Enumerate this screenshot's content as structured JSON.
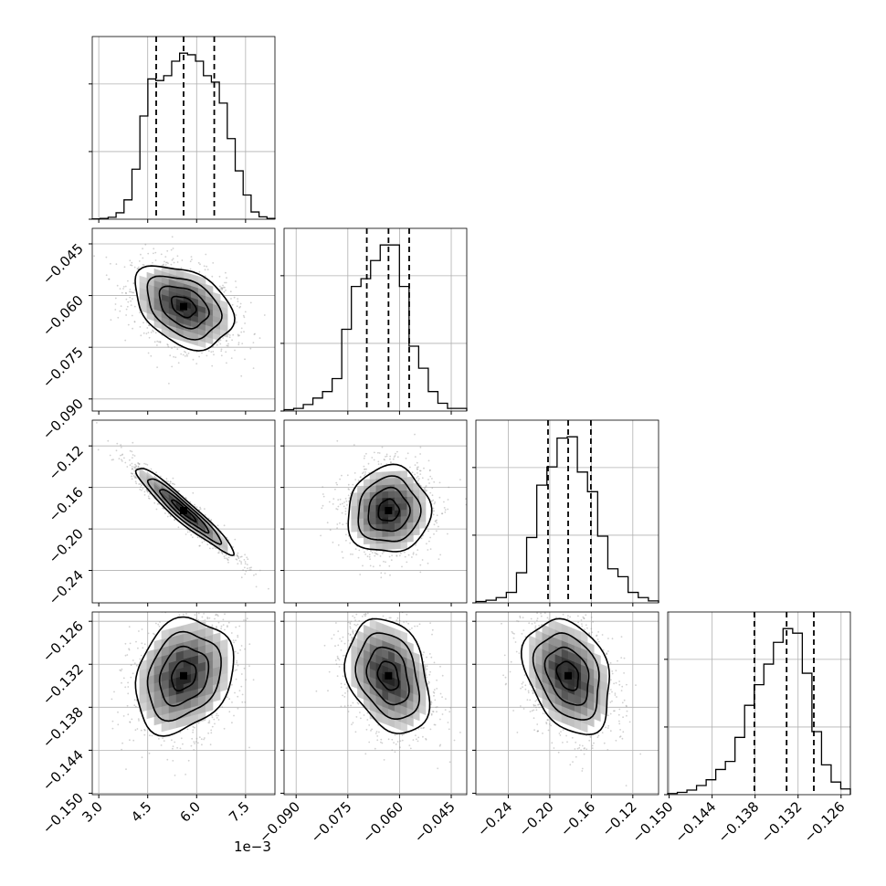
{
  "chart_data": {
    "type": "corner",
    "variables": 4,
    "grid": true,
    "colors": {
      "line": "#000000",
      "grid": "#b0b0b0",
      "scatter": "#9a9a9a"
    },
    "x_offset_label": "1e−3",
    "axes": [
      {
        "range": [
          2.8,
          8.4
        ],
        "ticks": [
          3.0,
          4.5,
          6.0,
          7.5
        ],
        "tick_labels": [
          "3.0",
          "4.5",
          "6.0",
          "7.5"
        ]
      },
      {
        "range": [
          -0.0935,
          -0.0405
        ],
        "ticks": [
          -0.09,
          -0.075,
          -0.06,
          -0.045
        ],
        "tick_labels": [
          "−0.090",
          "−0.075",
          "−0.060",
          "−0.045"
        ]
      },
      {
        "range": [
          -0.2712,
          -0.0952
        ],
        "ticks": [
          -0.24,
          -0.2,
          -0.16,
          -0.12
        ],
        "tick_labels": [
          "−0.24",
          "−0.20",
          "−0.16",
          "−0.12"
        ]
      },
      {
        "range": [
          -0.1502,
          -0.1247
        ],
        "ticks": [
          -0.15,
          -0.144,
          -0.138,
          -0.132,
          -0.126
        ],
        "tick_labels": [
          "−0.150",
          "−0.144",
          "−0.138",
          "−0.132",
          "−0.126"
        ]
      }
    ],
    "quantiles": [
      [
        4.76,
        5.6,
        6.54
      ],
      [
        -0.0695,
        -0.0632,
        -0.0572
      ],
      [
        -0.2017,
        -0.1823,
        -0.1604
      ],
      [
        -0.1381,
        -0.1336,
        -0.1298
      ]
    ],
    "histograms": [
      {
        "counts": [
          2,
          5,
          12,
          40,
          120,
          310,
          640,
          870,
          860,
          890,
          980,
          1030,
          1020,
          980,
          890,
          850,
          720,
          500,
          300,
          150,
          45,
          15,
          5
        ]
      },
      {
        "counts": [
          10,
          20,
          50,
          100,
          150,
          250,
          630,
          960,
          1020,
          1160,
          1280,
          1280,
          960,
          500,
          330,
          150,
          60,
          20,
          20
        ]
      },
      {
        "counts": [
          10,
          20,
          40,
          80,
          230,
          500,
          900,
          1040,
          1260,
          1270,
          1000,
          850,
          510,
          260,
          200,
          80,
          40,
          15
        ]
      },
      {
        "counts": [
          10,
          20,
          40,
          80,
          130,
          220,
          290,
          500,
          780,
          960,
          1140,
          1330,
          1450,
          1410,
          1060,
          550,
          260,
          110,
          50
        ]
      }
    ],
    "pairs": [
      {
        "x": 0,
        "y": 1,
        "mean": [
          5.6,
          -0.0632
        ],
        "sd": [
          0.75,
          0.006
        ],
        "rho": -0.36
      },
      {
        "x": 0,
        "y": 2,
        "mean": [
          5.6,
          -0.1823
        ],
        "sd": [
          0.75,
          0.0208
        ],
        "rho": -0.95
      },
      {
        "x": 0,
        "y": 3,
        "mean": [
          5.6,
          -0.1336
        ],
        "sd": [
          0.75,
          0.004
        ],
        "rho": 0.22
      },
      {
        "x": 1,
        "y": 2,
        "mean": [
          -0.0632,
          -0.1823
        ],
        "sd": [
          0.006,
          0.0208
        ],
        "rho": 0.05
      },
      {
        "x": 1,
        "y": 3,
        "mean": [
          -0.0632,
          -0.1336
        ],
        "sd": [
          0.006,
          0.004
        ],
        "rho": -0.28
      },
      {
        "x": 2,
        "y": 3,
        "mean": [
          -0.1823,
          -0.1336
        ],
        "sd": [
          0.0208,
          0.004
        ],
        "rho": -0.3
      }
    ]
  }
}
